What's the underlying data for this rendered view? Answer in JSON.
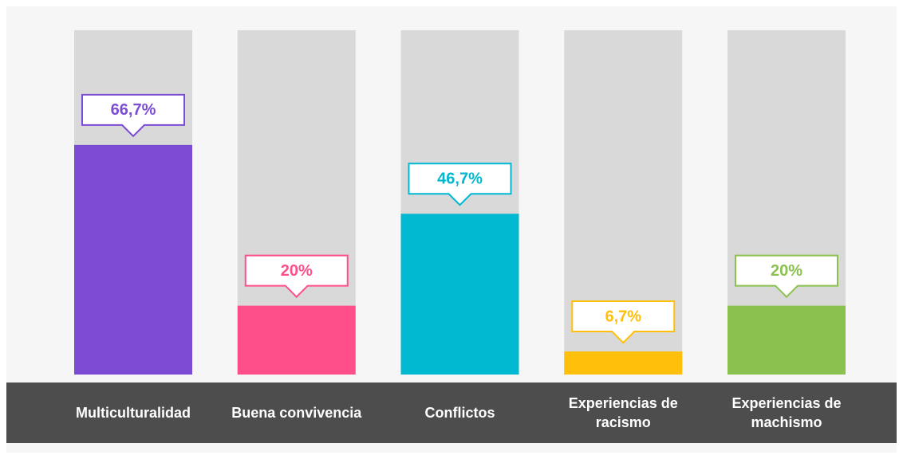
{
  "chart_data": {
    "type": "bar",
    "categories": [
      "Multiculturalidad",
      "Buena convivencia",
      "Conflictos",
      "Experiencias de racismo",
      "Experiencias de machismo"
    ],
    "values": [
      66.7,
      20,
      46.7,
      6.7,
      20
    ],
    "value_labels": [
      "66,7%",
      "20%",
      "46,7%",
      "6,7%",
      "20%"
    ],
    "colors": [
      "#7b4bd3",
      "#ff4f8b",
      "#00b8d0",
      "#ffbf0a",
      "#8bc14f"
    ],
    "ylim": [
      0,
      100
    ]
  }
}
